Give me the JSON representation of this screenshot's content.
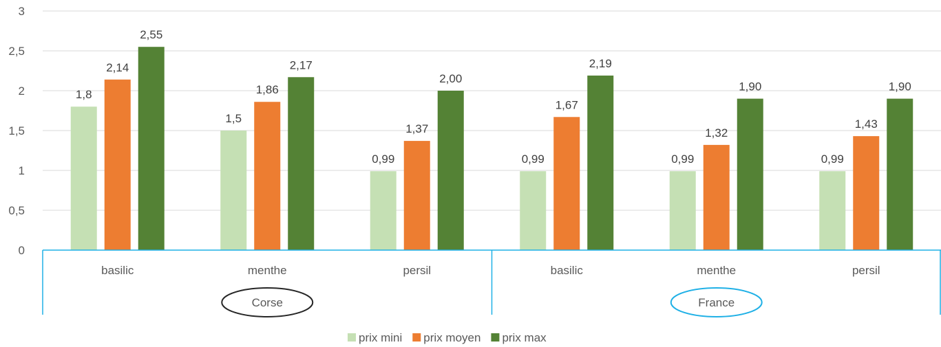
{
  "chart_data": {
    "type": "bar",
    "title": "",
    "xlabel": "",
    "ylabel": "",
    "ylim": [
      0,
      3
    ],
    "y_ticks": [
      "0",
      "0,5",
      "1",
      "1,5",
      "2",
      "2,5",
      "3"
    ],
    "grid": true,
    "legend_position": "bottom",
    "groups": [
      {
        "name": "Corse",
        "categories": [
          "basilic",
          "menthe",
          "persil"
        ]
      },
      {
        "name": "France",
        "categories": [
          "basilic",
          "menthe",
          "persil"
        ]
      }
    ],
    "series": [
      {
        "name": "prix mini",
        "color": "#c5e0b4",
        "values": [
          1.8,
          1.5,
          0.99,
          0.99,
          0.99,
          0.99
        ],
        "labels": [
          "1,8",
          "1,5",
          "0,99",
          "0,99",
          "0,99",
          "0,99"
        ]
      },
      {
        "name": "prix moyen",
        "color": "#ed7d31",
        "values": [
          2.14,
          1.86,
          1.37,
          1.67,
          1.32,
          1.43
        ],
        "labels": [
          "2,14",
          "1,86",
          "1,37",
          "1,67",
          "1,32",
          "1,43"
        ]
      },
      {
        "name": "prix max",
        "color": "#548235",
        "values": [
          2.55,
          2.17,
          2.0,
          2.19,
          1.9,
          1.9
        ],
        "labels": [
          "2,55",
          "2,17",
          "2,00",
          "2,19",
          "1,90",
          "1,90"
        ]
      }
    ],
    "group_outline_colors": {
      "Corse": "#262626",
      "France": "#1fb0e6"
    },
    "axis_line_color": "#1fb0e6",
    "gridline_color": "#d9d9d9"
  }
}
